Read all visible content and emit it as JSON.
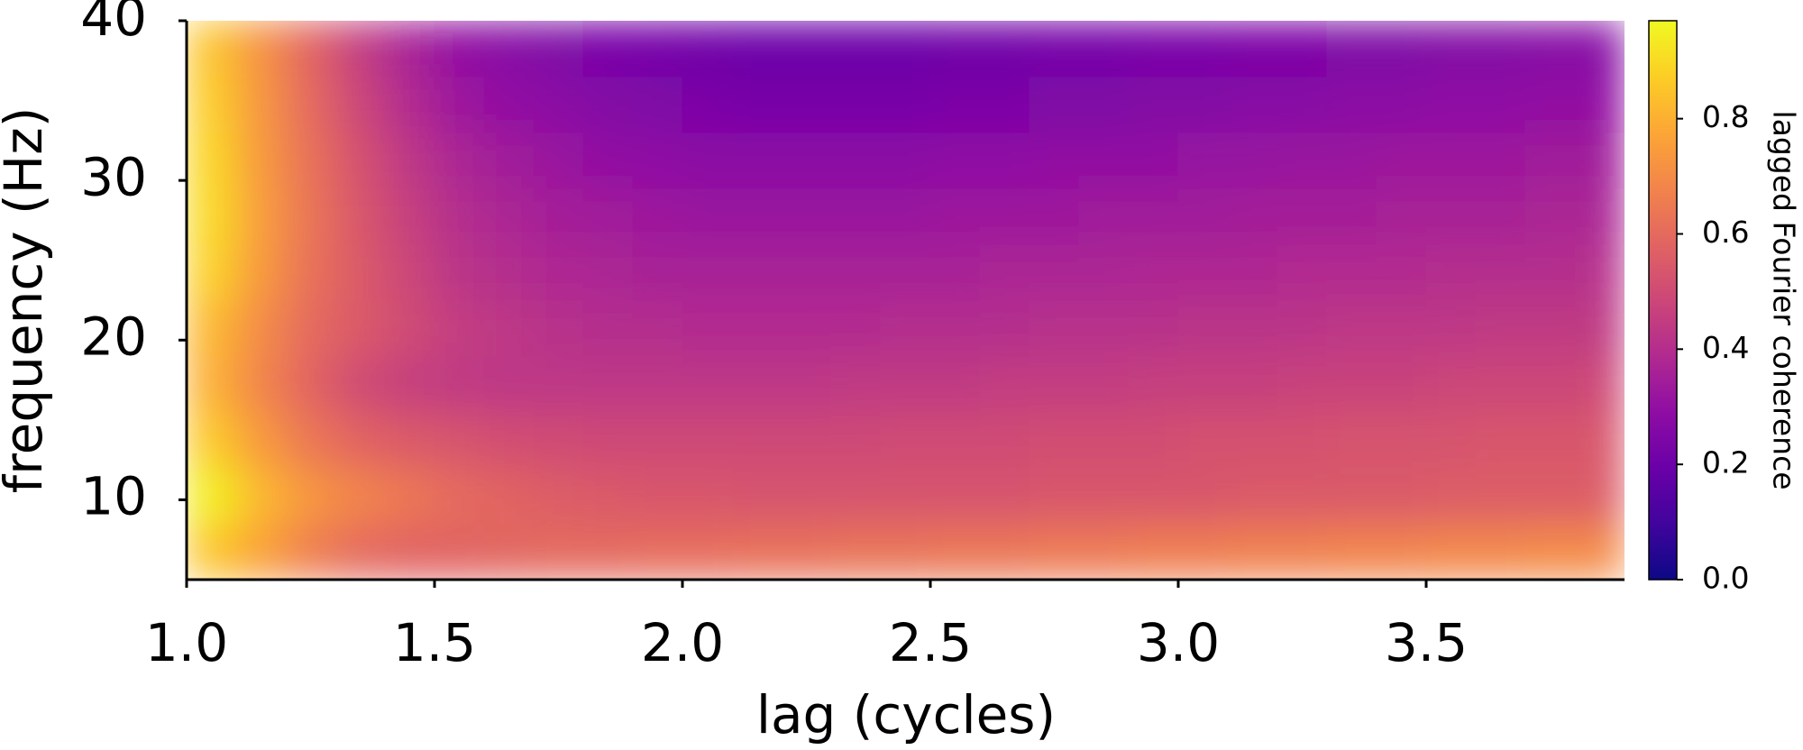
{
  "chart_data": {
    "type": "heatmap",
    "xlabel": "lag (cycles)",
    "ylabel": "frequency (Hz)",
    "colorbar_label": "lagged Fourier coherence",
    "colormap": "plasma",
    "xlim": [
      1.0,
      3.9
    ],
    "ylim": [
      5,
      40
    ],
    "zlim": [
      0,
      0.97
    ],
    "xticks": [
      {
        "value": 1,
        "label": "1.0"
      },
      1.5,
      {
        "value": 2,
        "label": "2.0"
      },
      2.5,
      {
        "value": 3,
        "label": "3.0"
      },
      3.5
    ],
    "yticks": [
      10,
      20,
      30,
      40
    ],
    "zticks": [
      {
        "value": 0,
        "label": "0.0"
      },
      0.2,
      0.4,
      0.6,
      0.8
    ],
    "x": [
      1.05,
      1.15,
      1.25,
      1.35,
      1.45,
      1.55,
      1.65,
      1.75,
      1.85,
      1.95,
      2.05,
      2.15,
      2.25,
      2.35,
      2.45,
      2.55,
      2.65,
      2.75,
      2.85,
      2.95,
      3.05,
      3.15,
      3.25,
      3.35,
      3.45,
      3.55,
      3.65,
      3.75,
      3.85
    ],
    "y": [
      6.75,
      10.25,
      13.75,
      17.25,
      20.75,
      24.25,
      27.75,
      31.25,
      34.75,
      38.25
    ],
    "z": [
      [
        0.85,
        0.76,
        0.66,
        0.6,
        0.58,
        0.58,
        0.59,
        0.6,
        0.6,
        0.61,
        0.61,
        0.62,
        0.62,
        0.63,
        0.63,
        0.64,
        0.64,
        0.65,
        0.65,
        0.66,
        0.66,
        0.67,
        0.67,
        0.68,
        0.68,
        0.69,
        0.69,
        0.7,
        0.7
      ],
      [
        0.95,
        0.82,
        0.73,
        0.68,
        0.64,
        0.6,
        0.58,
        0.56,
        0.55,
        0.54,
        0.54,
        0.53,
        0.53,
        0.53,
        0.53,
        0.53,
        0.53,
        0.54,
        0.54,
        0.54,
        0.54,
        0.55,
        0.55,
        0.55,
        0.55,
        0.56,
        0.56,
        0.56,
        0.56
      ],
      [
        0.86,
        0.74,
        0.64,
        0.58,
        0.55,
        0.53,
        0.51,
        0.5,
        0.49,
        0.49,
        0.49,
        0.49,
        0.49,
        0.49,
        0.5,
        0.5,
        0.5,
        0.51,
        0.51,
        0.51,
        0.52,
        0.52,
        0.52,
        0.53,
        0.53,
        0.53,
        0.54,
        0.54,
        0.54
      ],
      [
        0.8,
        0.68,
        0.58,
        0.5,
        0.46,
        0.44,
        0.43,
        0.43,
        0.43,
        0.43,
        0.43,
        0.43,
        0.43,
        0.44,
        0.44,
        0.44,
        0.45,
        0.45,
        0.45,
        0.46,
        0.46,
        0.46,
        0.47,
        0.47,
        0.47,
        0.48,
        0.48,
        0.48,
        0.49
      ],
      [
        0.82,
        0.7,
        0.6,
        0.55,
        0.5,
        0.45,
        0.43,
        0.41,
        0.4,
        0.4,
        0.39,
        0.39,
        0.39,
        0.39,
        0.4,
        0.4,
        0.4,
        0.41,
        0.41,
        0.41,
        0.42,
        0.42,
        0.42,
        0.43,
        0.43,
        0.43,
        0.44,
        0.44,
        0.44
      ],
      [
        0.88,
        0.74,
        0.62,
        0.55,
        0.48,
        0.42,
        0.4,
        0.38,
        0.37,
        0.36,
        0.36,
        0.36,
        0.36,
        0.36,
        0.36,
        0.36,
        0.37,
        0.37,
        0.37,
        0.38,
        0.38,
        0.38,
        0.39,
        0.39,
        0.39,
        0.4,
        0.4,
        0.4,
        0.41
      ],
      [
        0.9,
        0.75,
        0.63,
        0.54,
        0.46,
        0.4,
        0.37,
        0.35,
        0.34,
        0.33,
        0.32,
        0.32,
        0.32,
        0.32,
        0.32,
        0.33,
        0.33,
        0.33,
        0.34,
        0.34,
        0.34,
        0.35,
        0.35,
        0.35,
        0.36,
        0.36,
        0.36,
        0.37,
        0.37
      ],
      [
        0.89,
        0.74,
        0.62,
        0.52,
        0.43,
        0.37,
        0.34,
        0.32,
        0.3,
        0.29,
        0.28,
        0.28,
        0.28,
        0.28,
        0.28,
        0.29,
        0.29,
        0.3,
        0.3,
        0.3,
        0.31,
        0.31,
        0.32,
        0.32,
        0.33,
        0.33,
        0.33,
        0.34,
        0.34
      ],
      [
        0.87,
        0.73,
        0.6,
        0.48,
        0.39,
        0.33,
        0.3,
        0.28,
        0.26,
        0.25,
        0.24,
        0.23,
        0.23,
        0.23,
        0.23,
        0.24,
        0.24,
        0.25,
        0.25,
        0.26,
        0.26,
        0.27,
        0.27,
        0.28,
        0.28,
        0.29,
        0.29,
        0.3,
        0.3
      ],
      [
        0.85,
        0.72,
        0.58,
        0.45,
        0.36,
        0.3,
        0.27,
        0.25,
        0.23,
        0.22,
        0.21,
        0.2,
        0.2,
        0.2,
        0.2,
        0.21,
        0.21,
        0.22,
        0.22,
        0.23,
        0.23,
        0.24,
        0.24,
        0.25,
        0.25,
        0.26,
        0.26,
        0.27,
        0.27
      ]
    ]
  }
}
